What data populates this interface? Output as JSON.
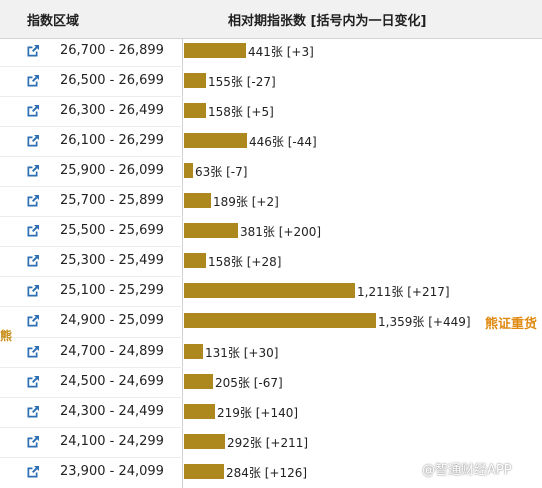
{
  "header": {
    "range_column": "指数区域",
    "contracts_column": "相对期指张数 [括号内为一日变化]"
  },
  "rows": [
    {
      "range": "26,700 - 26,899",
      "contracts": "441",
      "unit": "张",
      "change": "[+3]"
    },
    {
      "range": "26,500 - 26,699",
      "contracts": "155",
      "unit": "张",
      "change": "[-27]"
    },
    {
      "range": "26,300 - 26,499",
      "contracts": "158",
      "unit": "张",
      "change": "[+5]"
    },
    {
      "range": "26,100 - 26,299",
      "contracts": "446",
      "unit": "张",
      "change": "[-44]"
    },
    {
      "range": "25,900 - 26,099",
      "contracts": "63",
      "unit": "张",
      "change": "[-7]"
    },
    {
      "range": "25,700 - 25,899",
      "contracts": "189",
      "unit": "张",
      "change": "[+2]"
    },
    {
      "range": "25,500 - 25,699",
      "contracts": "381",
      "unit": "张",
      "change": "[+200]"
    },
    {
      "range": "25,300 - 25,499",
      "contracts": "158",
      "unit": "张",
      "change": "[+28]"
    },
    {
      "range": "25,100 - 25,299",
      "contracts": "1,211",
      "unit": "张",
      "change": "[+217]"
    },
    {
      "range": "24,900 - 25,099",
      "contracts": "1,359",
      "unit": "张",
      "change": "[+449]"
    },
    {
      "range": "24,700 - 24,899",
      "contracts": "131",
      "unit": "张",
      "change": "[+30]"
    },
    {
      "range": "24,500 - 24,699",
      "contracts": "205",
      "unit": "张",
      "change": "[-67]"
    },
    {
      "range": "24,300 - 24,499",
      "contracts": "219",
      "unit": "张",
      "change": "[+140]"
    },
    {
      "range": "24,100 - 24,299",
      "contracts": "292",
      "unit": "张",
      "change": "[+211]"
    },
    {
      "range": "23,900 - 24,099",
      "contracts": "284",
      "unit": "张",
      "change": "[+126]"
    }
  ],
  "side_label_left": "熊",
  "side_label_right": "熊证重货",
  "watermark": "@智通财经APP",
  "icons": {
    "row_link": "external-link-icon"
  },
  "colors": {
    "bar": "#ad881f",
    "header_bg": "#f1f1f1",
    "link_icon": "#2d6fb3",
    "side_label": "#e08a12"
  }
}
